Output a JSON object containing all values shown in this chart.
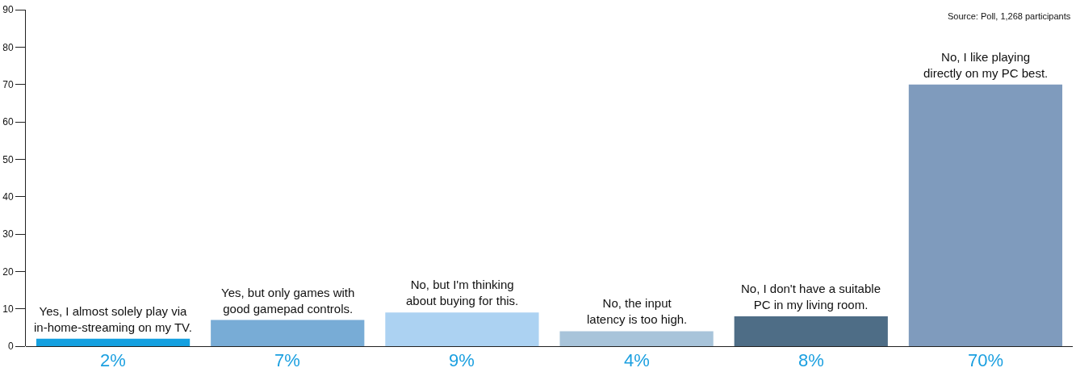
{
  "chart_data": {
    "type": "bar",
    "categories": [
      "Yes, I almost solely play via in-home-streaming on my TV.",
      "Yes, but only games with good gamepad controls.",
      "No, but I'm thinking about buying for this.",
      "No, the input latency is too high.",
      "No, I don't have a suitable PC in my living room.",
      "No, I like playing directly on my PC best."
    ],
    "values": [
      2,
      7,
      9,
      4,
      8,
      70
    ],
    "colors": [
      "#14a0e0",
      "#78acd6",
      "#acd2f2",
      "#a8c4da",
      "#4e6d86",
      "#7f9bbd"
    ],
    "value_labels": [
      "2%",
      "7%",
      "9%",
      "4%",
      "8%",
      "70%"
    ],
    "ylim": [
      0,
      90
    ],
    "yticks": [
      0,
      10,
      20,
      30,
      40,
      50,
      60,
      70,
      80,
      90
    ],
    "tick_labels": "y",
    "grid": false,
    "annotations": [
      "Source: Poll, 1,268 participants"
    ]
  }
}
